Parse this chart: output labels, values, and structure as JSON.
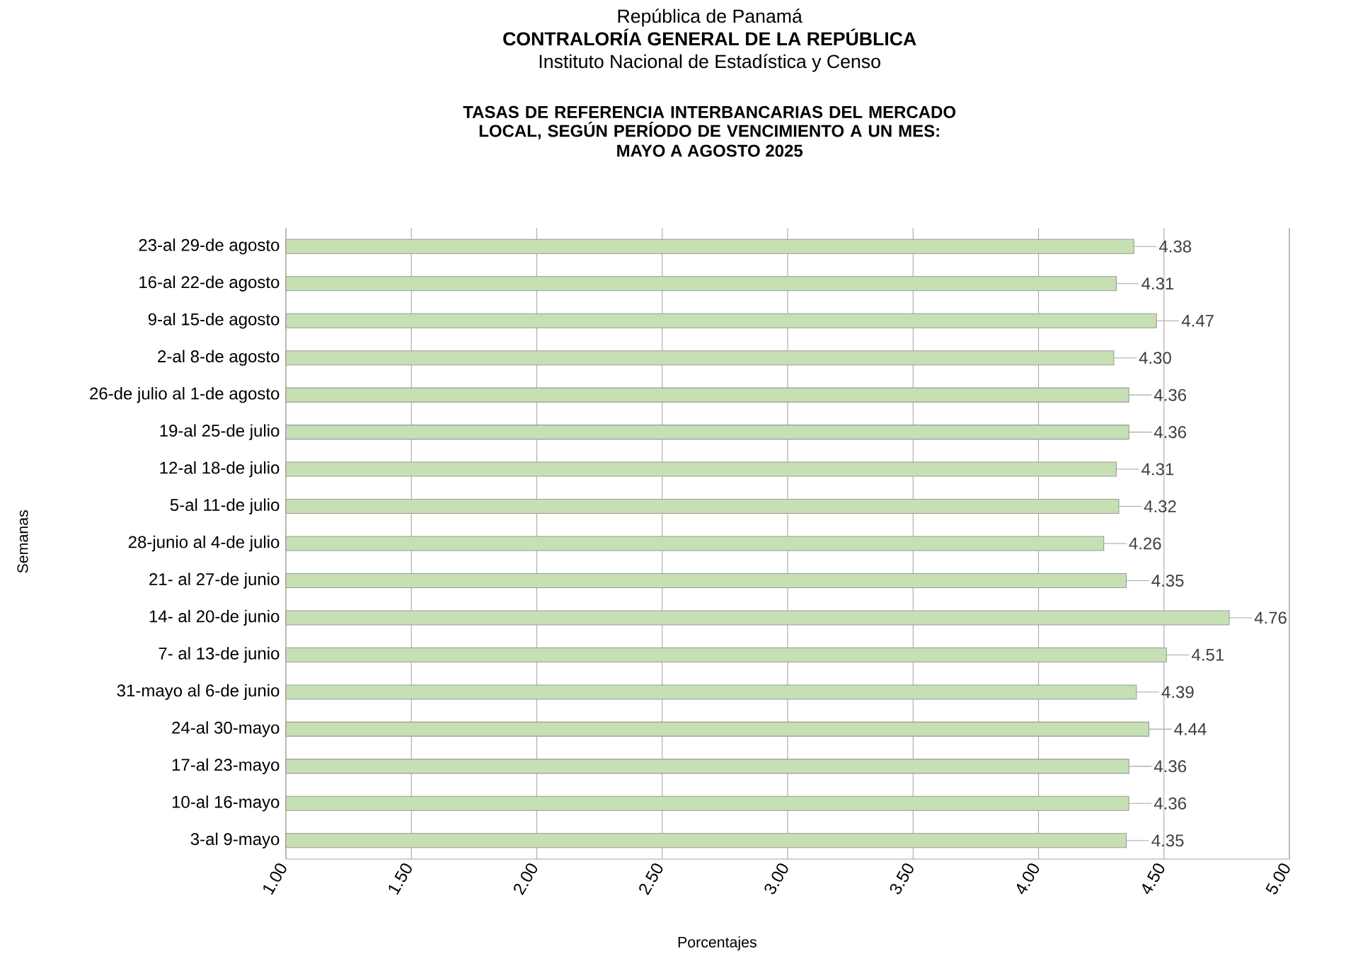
{
  "chart_data": {
    "type": "bar",
    "orientation": "horizontal",
    "annotations": [
      "República de Panamá",
      "**CONTRALORÍA GENERAL DE LA REPÚBLICA**",
      "Instituto Nacional de Estadística y Censo"
    ],
    "title": "TASAS DE REFERENCIA INTERBANCARIAS DEL MERCADO LOCAL, SEGÚN PERÍODO DE VENCIMIENTO A UN MES:",
    "subtitle": "MAYO A AGOSTO 2025",
    "xlabel": "Porcentajes",
    "ylabel": "Semanas",
    "categories": [
      "23-al 29-de agosto",
      "16-al 22-de agosto",
      "9-al 15-de agosto",
      "2-al 8-de agosto",
      "26-de julio al 1-de agosto",
      "19-al 25-de julio",
      "12-al 18-de julio",
      "5-al 11-de julio",
      "28-junio al 4-de julio",
      "21- al 27-de junio",
      "14- al 20-de junio",
      "7- al 13-de junio",
      "31-mayo al 6-de junio",
      "24-al 30-mayo",
      "17-al 23-mayo",
      "10-al 16-mayo",
      "3-al 9-mayo"
    ],
    "values": [
      4.38,
      4.31,
      4.47,
      4.3,
      4.36,
      4.36,
      4.31,
      4.32,
      4.26,
      4.35,
      4.76,
      4.51,
      4.39,
      4.44,
      4.36,
      4.36,
      4.35
    ],
    "value_labels": [
      "4.38",
      "4.31",
      "4.47",
      "4.30",
      "4.36",
      "4.36",
      "4.31",
      "4.32",
      "4.26",
      "4.35",
      "4.76",
      "4.51",
      "4.39",
      "4.44",
      "4.36",
      "4.36",
      "4.35"
    ],
    "color": "#c6e0b4",
    "xlim": [
      1,
      5
    ],
    "xticks": [
      {
        "value": 1,
        "label": "1.00"
      },
      {
        "value": 1.5,
        "label": "1.50"
      },
      {
        "value": 2,
        "label": "2.00"
      },
      {
        "value": 2.5,
        "label": "2.50"
      },
      {
        "value": 3,
        "label": "3.00"
      },
      {
        "value": 3.5,
        "label": "3.50"
      },
      {
        "value": 4,
        "label": "4.00"
      },
      {
        "value": 4.5,
        "label": "4.50"
      },
      {
        "value": 5,
        "label": "5.00"
      }
    ],
    "grid": "x"
  }
}
